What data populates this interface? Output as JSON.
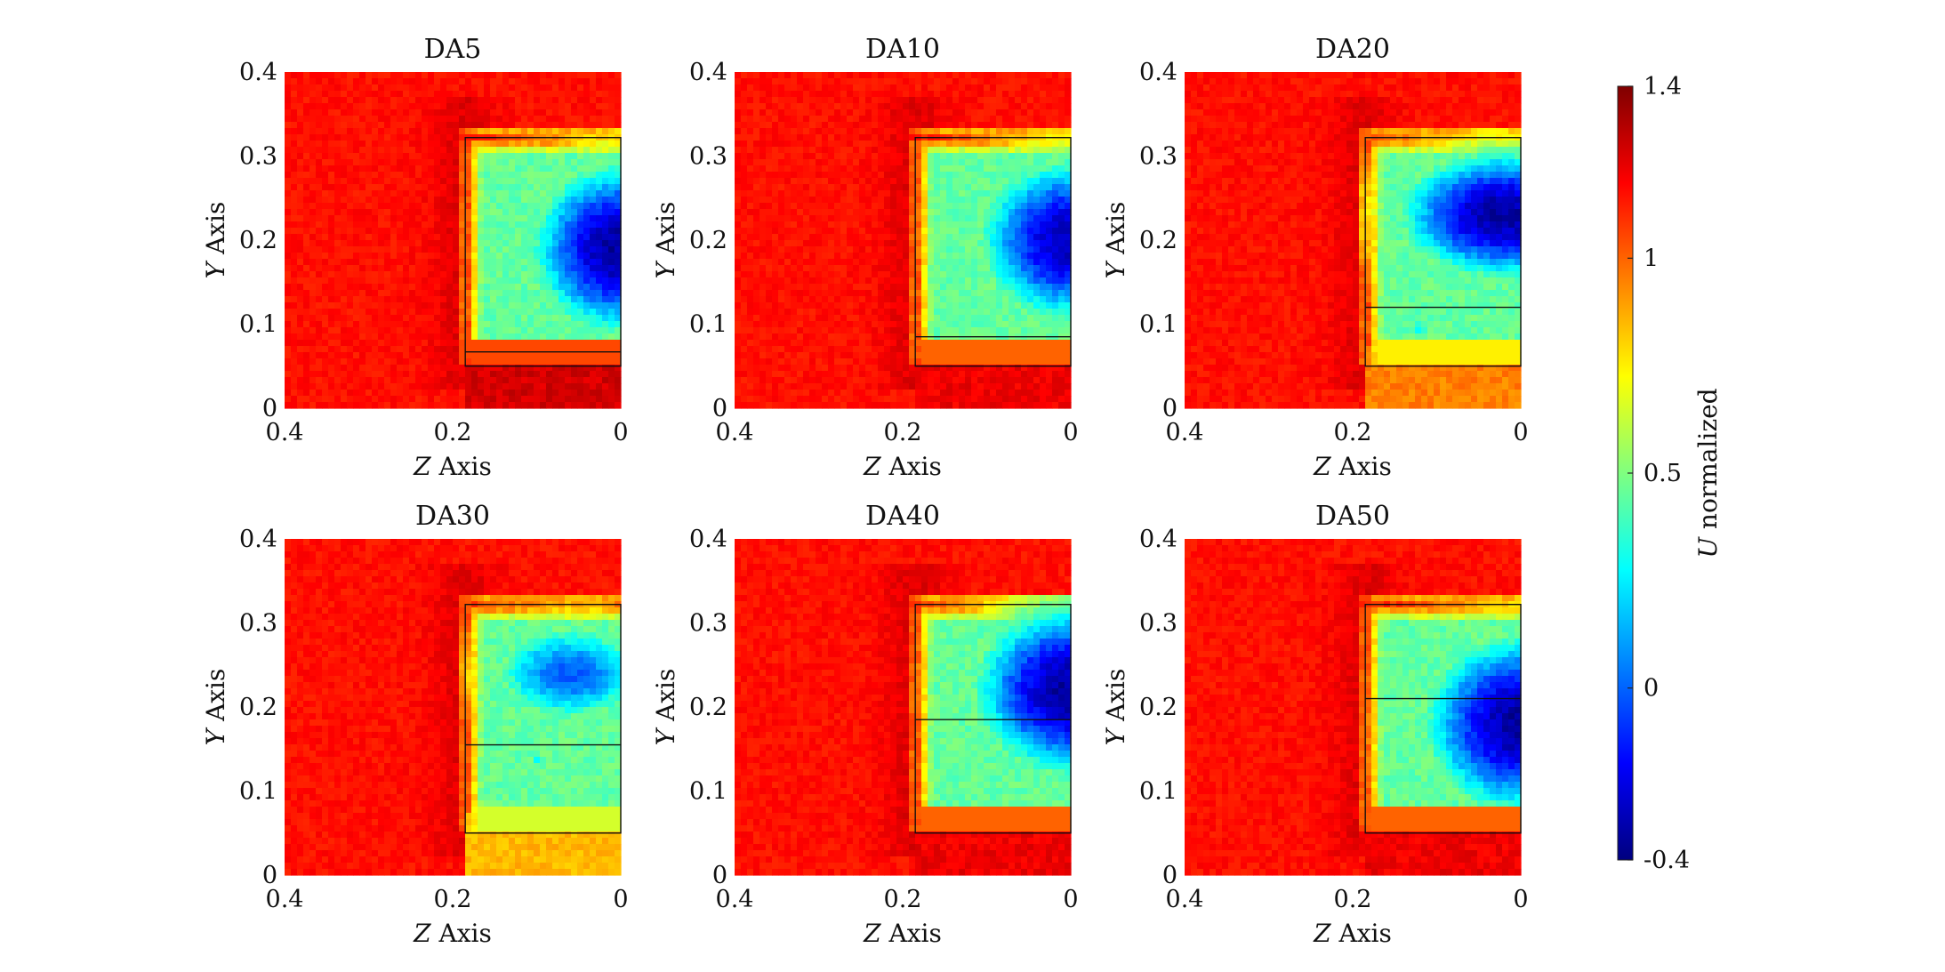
{
  "chart_data": {
    "type": "heatmap",
    "colormap": "jet",
    "colorbar": {
      "label_italic": "U",
      "label_rest": " normalized",
      "range": [
        -0.4,
        1.4
      ],
      "ticks": [
        -0.4,
        0,
        0.5,
        1,
        1.4
      ],
      "tick_labels": [
        "-0.4",
        "0",
        "0.5",
        "1",
        "1.4"
      ]
    },
    "axes": {
      "xlabel_italic": "Z",
      "xlabel_rest": " Axis",
      "ylabel_italic": "Y",
      "ylabel_rest": " Axis",
      "xlim": [
        0.4,
        0
      ],
      "ylim": [
        0,
        0.4
      ],
      "xticks": [
        "0.4",
        "0.2",
        "0"
      ],
      "yticks": [
        "0",
        "0.1",
        "0.2",
        "0.3",
        "0.4"
      ],
      "x_reversed": true
    },
    "background_value": 1.15,
    "panels": [
      {
        "title": "DA5",
        "box": {
          "z0": 0,
          "z1": 0.185,
          "y0": 0.05,
          "y1": 0.322
        },
        "inner_line_y": 0.067,
        "wake": {
          "zc": 0.0,
          "yc": 0.19,
          "rz": 0.12,
          "ry": 0.115,
          "min": -0.35
        },
        "vortex": null,
        "lower_fill": 1.25
      },
      {
        "title": "DA10",
        "box": {
          "z0": 0,
          "z1": 0.185,
          "y0": 0.05,
          "y1": 0.322
        },
        "inner_line_y": 0.085,
        "wake": {
          "zc": 0.0,
          "yc": 0.2,
          "rz": 0.125,
          "ry": 0.11,
          "min": -0.3
        },
        "vortex": null,
        "lower_fill": 1.2
      },
      {
        "title": "DA20",
        "box": {
          "z0": 0,
          "z1": 0.185,
          "y0": 0.05,
          "y1": 0.322
        },
        "inner_line_y": 0.12,
        "wake": {
          "zc": 0.02,
          "yc": 0.23,
          "rz": 0.14,
          "ry": 0.085,
          "min": -0.35
        },
        "vortex": {
          "z": 0.12,
          "y": 0.095,
          "r": 0.03
        },
        "lower_fill": 0.95
      },
      {
        "title": "DA30",
        "box": {
          "z0": 0,
          "z1": 0.185,
          "y0": 0.05,
          "y1": 0.322
        },
        "inner_line_y": 0.155,
        "wake": {
          "zc": 0.06,
          "yc": 0.24,
          "rz": 0.11,
          "ry": 0.07,
          "min": 0.0
        },
        "vortex": {
          "z": 0.1,
          "y": 0.135,
          "r": 0.02
        },
        "lower_fill": 0.85
      },
      {
        "title": "DA40",
        "box": {
          "z0": 0,
          "z1": 0.185,
          "y0": 0.05,
          "y1": 0.322
        },
        "inner_line_y": 0.185,
        "wake": {
          "zc": 0.0,
          "yc": 0.22,
          "rz": 0.13,
          "ry": 0.115,
          "min": -0.35
        },
        "vortex": null,
        "lower_fill": 1.2
      },
      {
        "title": "DA50",
        "box": {
          "z0": 0,
          "z1": 0.185,
          "y0": 0.05,
          "y1": 0.322
        },
        "inner_line_y": 0.21,
        "wake": {
          "zc": 0.0,
          "yc": 0.18,
          "rz": 0.13,
          "ry": 0.12,
          "min": -0.35
        },
        "vortex": null,
        "lower_fill": 1.2
      }
    ]
  }
}
